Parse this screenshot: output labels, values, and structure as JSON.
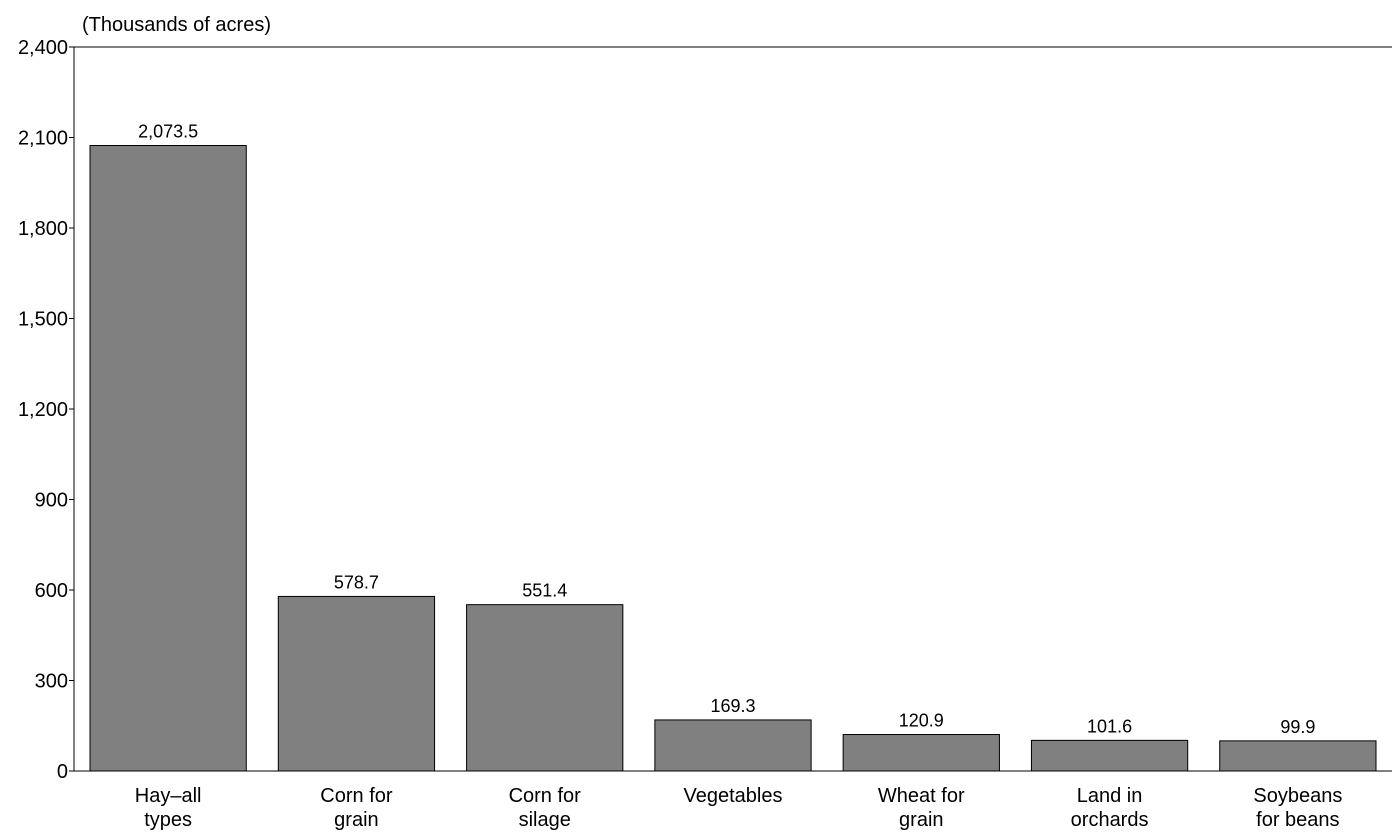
{
  "chart_data": {
    "type": "bar",
    "title": "",
    "xlabel": "",
    "ylabel": "(Thousands of acres)",
    "ylim": [
      0,
      2400
    ],
    "yticks": [
      0,
      300,
      600,
      900,
      1200,
      1500,
      1800,
      2100,
      2400
    ],
    "ytick_labels": [
      "0",
      "300",
      "600",
      "900",
      "1,200",
      "1,500",
      "1,800",
      "2,100",
      "2,400"
    ],
    "categories": [
      [
        "Hay–all",
        "types"
      ],
      [
        "Corn for",
        "grain"
      ],
      [
        "Corn for",
        "silage"
      ],
      [
        "Vegetables"
      ],
      [
        "Wheat for",
        "grain"
      ],
      [
        "Land in",
        "orchards"
      ],
      [
        "Soybeans",
        "for beans"
      ]
    ],
    "values": [
      2073.5,
      578.7,
      551.4,
      169.3,
      120.9,
      101.6,
      99.9
    ],
    "value_labels": [
      "2,073.5",
      "578.7",
      "551.4",
      "169.3",
      "120.9",
      "101.6",
      "99.9"
    ],
    "grid": false,
    "legend": "none",
    "colors": {
      "bar_fill": "#808080",
      "bar_stroke": "#000000",
      "axis": "#000000",
      "text": "#000000"
    }
  }
}
